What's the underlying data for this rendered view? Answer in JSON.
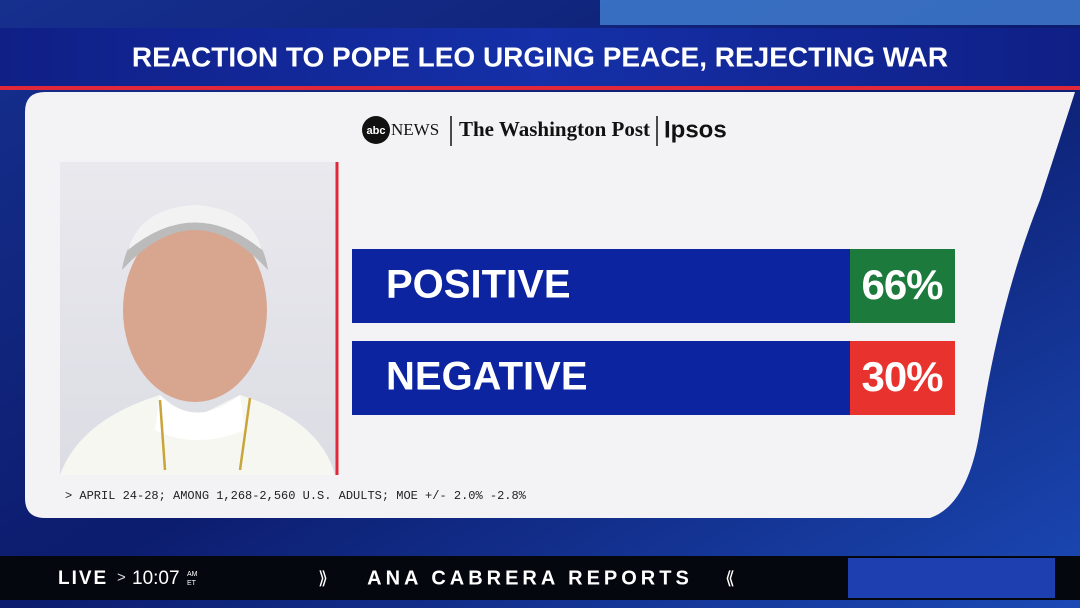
{
  "header": {
    "title": "REACTION TO POPE LEO URGING PEACE, REJECTING WAR"
  },
  "sources": {
    "abc": "abc",
    "news": "NEWS",
    "post": "The Washington Post",
    "ipsos": "Ipsos"
  },
  "rows": [
    {
      "label": "POSITIVE",
      "value": "66%"
    },
    {
      "label": "NEGATIVE",
      "value": "30%"
    }
  ],
  "footnote": "> APRIL 24-28; AMONG 1,268-2,560 U.S. ADULTS; MOE +/- 2.0% -2.8%",
  "ticker": {
    "live": "LIVE",
    "arrow": ">",
    "time": "10:07",
    "ampm": "AM",
    "tz": "ET",
    "show": "ANA CABRERA REPORTS"
  }
}
